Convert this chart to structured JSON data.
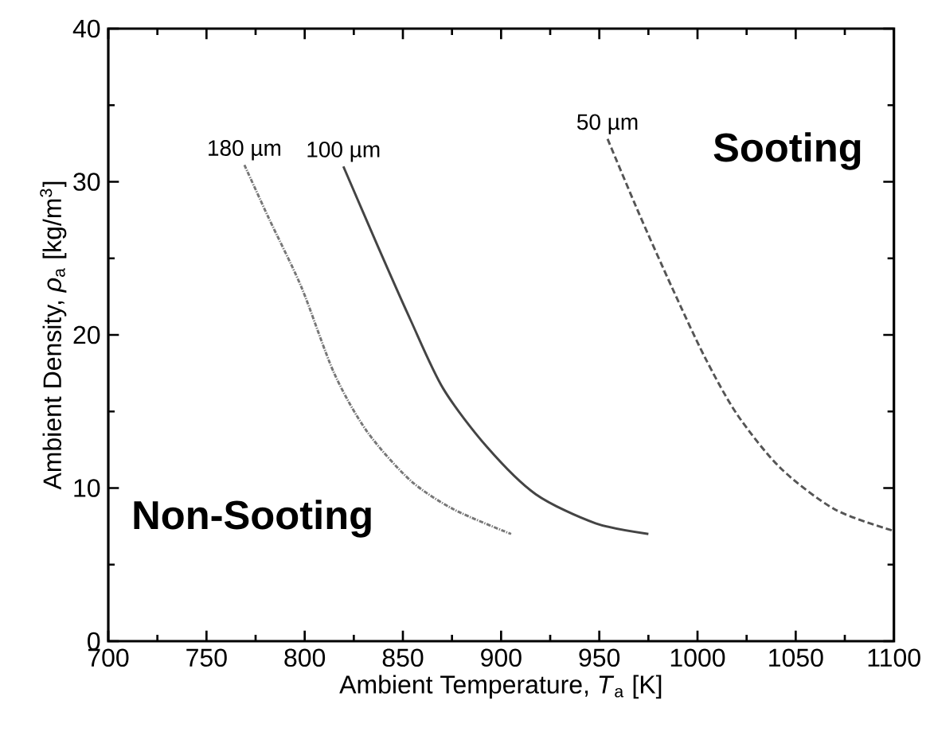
{
  "chart_data": {
    "type": "line",
    "xlabel": "Ambient Temperature, *T*$_{a}$ [K]",
    "ylabel": "Ambient Density, *ρ*$_{a}$ [kg/m$^{3}$]",
    "xlim": [
      700,
      1100
    ],
    "xticks": [
      700,
      750,
      800,
      850,
      900,
      950,
      1000,
      1050,
      1100
    ],
    "ylim": [
      0,
      40
    ],
    "yticks": [
      0,
      10,
      20,
      30,
      40
    ],
    "grid": false,
    "marker": "none",
    "series": [
      {
        "name": "180 µm",
        "color": "#777777",
        "line_style": "dotted",
        "x": [
          769.3,
          781.8,
          798.4,
          815.0,
          831.7,
          853.8,
          876.0,
          905.1
        ],
        "values": [
          31.1,
          27.6,
          23.1,
          17.5,
          13.7,
          10.5,
          8.6,
          7.0
        ]
      },
      {
        "name": "100 µm",
        "color": "#444444",
        "line_style": "solid",
        "x": [
          819.7,
          837.2,
          853.8,
          870.5,
          892.7,
          917.6,
          948.1,
          975.0
        ],
        "values": [
          31.0,
          25.8,
          21.0,
          16.5,
          12.7,
          9.6,
          7.7,
          7.0
        ]
      },
      {
        "name": "50 µm",
        "color": "#555555",
        "line_style": "dashed",
        "x": [
          954.2,
          970.3,
          987.0,
          1003.5,
          1020.2,
          1042.3,
          1070.0,
          1100.0
        ],
        "values": [
          32.8,
          27.9,
          23.1,
          18.6,
          14.8,
          11.3,
          8.6,
          7.2
        ]
      }
    ],
    "annotations": [
      "Sooting",
      "Non-Sooting"
    ]
  }
}
